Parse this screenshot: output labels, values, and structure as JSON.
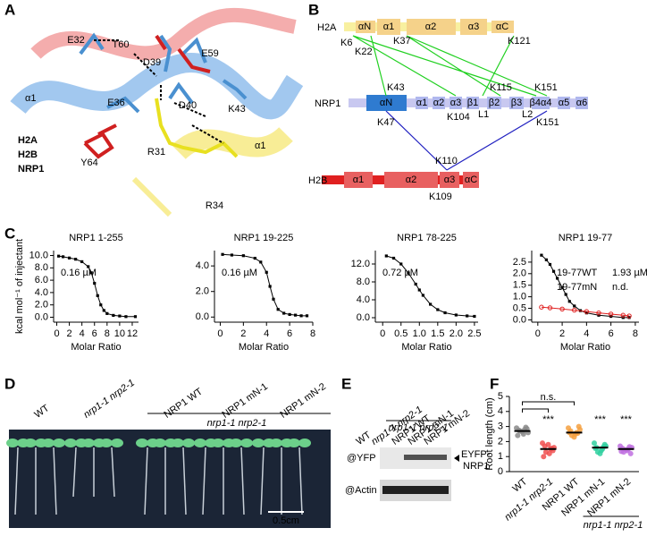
{
  "panel_labels": [
    "A",
    "B",
    "C",
    "D",
    "E",
    "F"
  ],
  "structure": {
    "residues": [
      "E32",
      "T60",
      "D39",
      "E59",
      "E36",
      "D40",
      "K43",
      "R31",
      "Y64",
      "R34"
    ],
    "helix_labels": [
      "α1",
      "α1"
    ],
    "legend": [
      "H2A",
      "H2B",
      "NRP1"
    ]
  },
  "domain_map": {
    "h2a": {
      "name": "H2A",
      "domains": [
        "αN",
        "α1",
        "α2",
        "α3",
        "αC"
      ],
      "sites": [
        "K6",
        "K22",
        "K37",
        "K121"
      ]
    },
    "nrp1": {
      "name": "NRP1",
      "domains": [
        "αN",
        "α1",
        "α2",
        "α3",
        "β1",
        "β2",
        "β3",
        "β4α4",
        "α5",
        "α6"
      ],
      "sites": [
        "K43",
        "K115",
        "K151",
        "K47",
        "K104",
        "L1",
        "L2",
        "K151"
      ]
    },
    "h2b": {
      "name": "H2B",
      "domains": [
        "α1",
        "α2",
        "α3",
        "αC"
      ],
      "sites": [
        "K110",
        "K109"
      ]
    }
  },
  "seedlings": {
    "labels": [
      "WT",
      "nrp1-1 nrp2-1",
      "NRP1 WT",
      "NRP1 mN-1",
      "NRP1 mN-2"
    ],
    "group_label": "nrp1-1 nrp2-1",
    "scale_bar": "0.5cm"
  },
  "blot": {
    "labels": [
      "WT",
      "nrp1-1 nrp2-1",
      "NRP1 WT",
      "NRP1 mN-1",
      "NRP1 mN-2"
    ],
    "group_label": "nrp1-1 nrp2-1",
    "rows": [
      "@YFP",
      "@Actin"
    ],
    "band_label": [
      "EYFP-",
      "NRP1"
    ]
  },
  "chart_data": [
    {
      "type": "line",
      "title": "NRP1 1-255",
      "x_label": "Molar Ratio",
      "y_label": "kcal mol⁻¹ of injectant",
      "kd": "0.16 µM",
      "xlim": [
        -0.5,
        13
      ],
      "ylim": [
        -0.8,
        10.8
      ],
      "xticks": [
        0,
        2,
        4,
        6,
        8,
        10,
        12
      ],
      "yticks": [
        {
          "value": 0,
          "label": "0.0"
        },
        {
          "value": 2,
          "label": "2.0"
        },
        {
          "value": 4,
          "label": "4.0"
        },
        {
          "value": 6,
          "label": "6.0"
        },
        {
          "value": 8,
          "label": "8.0"
        },
        {
          "value": 10,
          "label": "10.0"
        }
      ],
      "series": [
        {
          "marker": "square",
          "color": "#000000",
          "x": [
            0.3,
            1,
            2,
            3,
            4,
            5,
            5.5,
            6,
            6.5,
            7,
            7.5,
            8,
            9,
            10,
            11,
            12.5
          ],
          "values": [
            9.9,
            9.8,
            9.6,
            9.4,
            9.0,
            8.2,
            7.2,
            5.5,
            3.5,
            2.0,
            1.1,
            0.6,
            0.3,
            0.2,
            0.1,
            0.1
          ]
        }
      ]
    },
    {
      "type": "line",
      "title": "NRP1 19-225",
      "x_label": "Molar Ratio",
      "kd": "0.16 µM",
      "xlim": [
        -0.5,
        8
      ],
      "ylim": [
        -0.4,
        5.2
      ],
      "xticks": [
        0,
        2,
        4,
        6,
        8
      ],
      "yticks": [
        {
          "value": 0,
          "label": "0.0"
        },
        {
          "value": 2,
          "label": "2.0"
        },
        {
          "value": 4,
          "label": "4.0"
        }
      ],
      "series": [
        {
          "marker": "square",
          "color": "#000000",
          "x": [
            0.2,
            1,
            2,
            3,
            3.5,
            4,
            4.3,
            4.6,
            5,
            5.5,
            6,
            6.5,
            7,
            7.5
          ],
          "values": [
            4.9,
            4.85,
            4.8,
            4.6,
            4.3,
            3.5,
            2.4,
            1.4,
            0.6,
            0.3,
            0.2,
            0.15,
            0.1,
            0.1
          ]
        }
      ]
    },
    {
      "type": "line",
      "title": "NRP1 78-225",
      "x_label": "Molar Ratio",
      "kd": "0.72 µM",
      "xlim": [
        -0.2,
        2.6
      ],
      "ylim": [
        -1,
        15
      ],
      "xticks": [
        0,
        0.5,
        {
          "value": 1,
          "label": "1.0"
        },
        1.5,
        {
          "value": 2,
          "label": "2.0"
        },
        2.5
      ],
      "yticks": [
        {
          "value": 0,
          "label": "0.0"
        },
        {
          "value": 4,
          "label": "4.0"
        },
        {
          "value": 8,
          "label": "8.0"
        },
        {
          "value": 12,
          "label": "12.0"
        }
      ],
      "series": [
        {
          "marker": "square",
          "color": "#000000",
          "x": [
            0.1,
            0.3,
            0.5,
            0.7,
            0.9,
            1.0,
            1.1,
            1.3,
            1.5,
            1.7,
            2.0,
            2.3,
            2.5
          ],
          "values": [
            13.8,
            13.3,
            12,
            10,
            7.5,
            6.2,
            5,
            3,
            1.8,
            1.1,
            0.6,
            0.4,
            0.3
          ]
        }
      ]
    },
    {
      "type": "line",
      "title": "NRP1 19-77",
      "x_label": "Molar Ratio",
      "xlim": [
        -0.5,
        8.3
      ],
      "ylim": [
        -0.1,
        3.0
      ],
      "xticks": [
        0,
        2,
        4,
        6,
        8
      ],
      "yticks": [
        {
          "value": 0,
          "label": "0.0"
        },
        0.5,
        {
          "value": 1,
          "label": "1.0"
        },
        1.5,
        {
          "value": 2,
          "label": "2.0"
        },
        2.5
      ],
      "series": [
        {
          "name": "19-77WT",
          "kd": "1.93 µM",
          "marker": "square",
          "color": "#000000",
          "x": [
            0.3,
            0.7,
            1,
            1.3,
            1.6,
            2,
            2.3,
            2.6,
            3,
            3.5,
            4,
            5,
            6,
            7,
            7.5
          ],
          "values": [
            2.8,
            2.6,
            2.4,
            2.1,
            1.8,
            1.4,
            1.1,
            0.8,
            0.6,
            0.4,
            0.3,
            0.2,
            0.15,
            0.1,
            0.1
          ]
        },
        {
          "name": "19-77mN",
          "kd": "n.d.",
          "marker": "open-circle",
          "color": "#e02020",
          "x": [
            0.3,
            1,
            2,
            3,
            4,
            5,
            6,
            7,
            7.5
          ],
          "values": [
            0.55,
            0.52,
            0.47,
            0.42,
            0.36,
            0.3,
            0.25,
            0.2,
            0.17
          ]
        }
      ]
    },
    {
      "type": "strip",
      "y_label": "Root length (cm)",
      "ylim": [
        0,
        5
      ],
      "yticks": [
        0,
        1,
        2,
        3,
        4,
        5
      ],
      "categories": [
        "WT",
        "nrp1-1 nrp2-1",
        "NRP1 WT",
        "NRP1 mN-1",
        "NRP1 mN-2"
      ],
      "group_label": "nrp1-1 nrp2-1",
      "colors": [
        "#8a8a8a",
        "#f05050",
        "#f5a040",
        "#30d0a0",
        "#c070e0"
      ],
      "values": [
        [
          2.9,
          2.8,
          2.7,
          2.6,
          2.5,
          2.75,
          2.85,
          2.65,
          2.4,
          2.95
        ],
        [
          1.9,
          1.5,
          1.3,
          1.6,
          1.2,
          1.7,
          1.4,
          1.8,
          1.0,
          1.55
        ],
        [
          2.9,
          2.6,
          2.4,
          2.8,
          2.5,
          2.7,
          3.0,
          2.3,
          2.6,
          2.55
        ],
        [
          1.9,
          1.5,
          1.3,
          1.7,
          1.4,
          1.6,
          1.8,
          1.2,
          1.55,
          1.65
        ],
        [
          1.7,
          1.5,
          1.3,
          1.6,
          1.4,
          1.55,
          1.2,
          1.45,
          1.35,
          1.65
        ]
      ],
      "means": [
        2.7,
        1.5,
        2.6,
        1.6,
        1.5
      ],
      "significance": [
        "***",
        "n.s.",
        "***",
        "***"
      ]
    }
  ]
}
